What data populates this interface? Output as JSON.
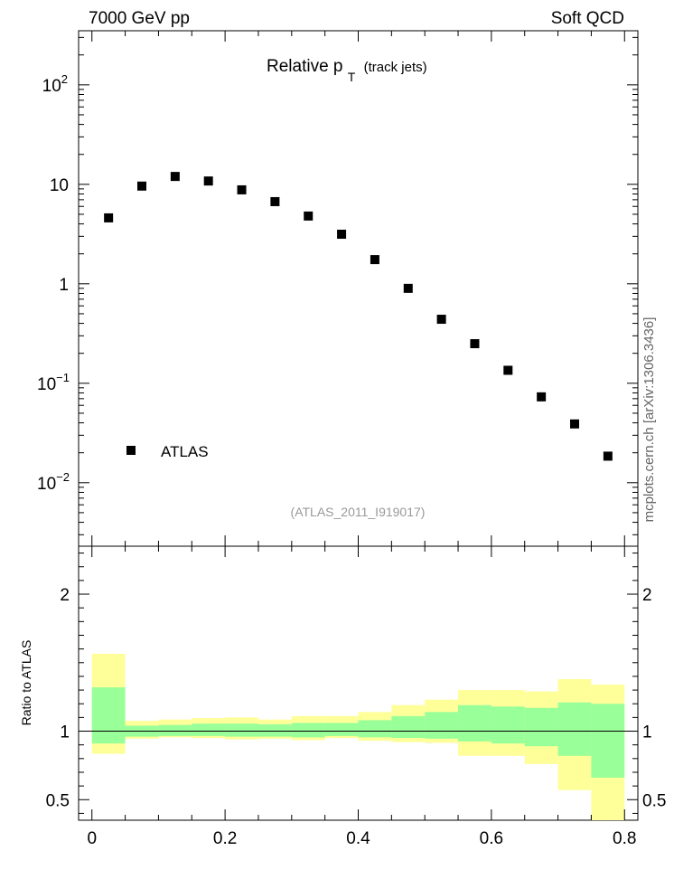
{
  "header": {
    "left": "7000 GeV pp",
    "right": "Soft QCD"
  },
  "title": {
    "main": "Relative p",
    "sub": "T",
    "suffix": "(track jets)"
  },
  "side_label": "mcplots.cern.ch [arXiv:1306.3436]",
  "analysis_id": "(ATLAS_2011_I919017)",
  "legend": {
    "label": "ATLAS",
    "placement": "bottom-left",
    "marker": "square"
  },
  "colors": {
    "band_inner": "#99ff99",
    "band_outer": "#ffff99",
    "marker": "#000000",
    "analysis_text": "#999999",
    "side_text": "#666666"
  },
  "chart_data": [
    {
      "type": "scatter",
      "panel": "main",
      "yscale": "log",
      "xlim": [
        -0.02,
        0.82
      ],
      "ylim": [
        0.0023,
        350
      ],
      "y_ticks": [
        {
          "value": 0.01,
          "base": "10",
          "exp": "−2"
        },
        {
          "value": 0.1,
          "base": "10",
          "exp": "−1"
        },
        {
          "value": 1,
          "base": "1",
          "exp": ""
        },
        {
          "value": 10,
          "base": "10",
          "exp": ""
        },
        {
          "value": 100,
          "base": "10",
          "exp": "2"
        }
      ],
      "series": [
        {
          "name": "ATLAS",
          "x": [
            0.025,
            0.075,
            0.125,
            0.175,
            0.225,
            0.275,
            0.325,
            0.375,
            0.425,
            0.475,
            0.525,
            0.575,
            0.625,
            0.675,
            0.725,
            0.775
          ],
          "y": [
            4.6,
            9.6,
            12.0,
            10.8,
            8.8,
            6.7,
            4.8,
            3.15,
            1.75,
            0.9,
            0.44,
            0.25,
            0.135,
            0.073,
            0.039,
            0.0185
          ]
        }
      ]
    },
    {
      "type": "area",
      "panel": "ratio",
      "ylabel": "Ratio to ATLAS",
      "xlim": [
        -0.02,
        0.82
      ],
      "ylim": [
        0.35,
        2.35
      ],
      "x_ticks": [
        "0",
        "0.2",
        "0.4",
        "0.6",
        "0.8"
      ],
      "x_tick_values": [
        0,
        0.2,
        0.4,
        0.6,
        0.8
      ],
      "y_ticks": [
        "0.5",
        "1",
        "2"
      ],
      "y_tick_values": [
        0.5,
        1,
        2
      ],
      "bins": [
        {
          "lo": 0.0,
          "hi": 0.05,
          "outer": [
            0.835,
            1.565
          ],
          "inner": [
            0.91,
            1.32
          ]
        },
        {
          "lo": 0.05,
          "hi": 0.1,
          "outer": [
            0.945,
            1.075
          ],
          "inner": [
            0.96,
            1.04
          ]
        },
        {
          "lo": 0.1,
          "hi": 0.15,
          "outer": [
            0.955,
            1.085
          ],
          "inner": [
            0.965,
            1.045
          ]
        },
        {
          "lo": 0.15,
          "hi": 0.2,
          "outer": [
            0.95,
            1.095
          ],
          "inner": [
            0.965,
            1.055
          ]
        },
        {
          "lo": 0.2,
          "hi": 0.25,
          "outer": [
            0.94,
            1.1
          ],
          "inner": [
            0.96,
            1.055
          ]
        },
        {
          "lo": 0.25,
          "hi": 0.3,
          "outer": [
            0.945,
            1.085
          ],
          "inner": [
            0.96,
            1.05
          ]
        },
        {
          "lo": 0.3,
          "hi": 0.35,
          "outer": [
            0.935,
            1.11
          ],
          "inner": [
            0.955,
            1.06
          ]
        },
        {
          "lo": 0.35,
          "hi": 0.4,
          "outer": [
            0.95,
            1.11
          ],
          "inner": [
            0.965,
            1.06
          ]
        },
        {
          "lo": 0.4,
          "hi": 0.45,
          "outer": [
            0.93,
            1.14
          ],
          "inner": [
            0.955,
            1.08
          ]
        },
        {
          "lo": 0.45,
          "hi": 0.5,
          "outer": [
            0.92,
            1.19
          ],
          "inner": [
            0.95,
            1.11
          ]
        },
        {
          "lo": 0.5,
          "hi": 0.55,
          "outer": [
            0.915,
            1.23
          ],
          "inner": [
            0.945,
            1.14
          ]
        },
        {
          "lo": 0.55,
          "hi": 0.6,
          "outer": [
            0.82,
            1.3
          ],
          "inner": [
            0.925,
            1.19
          ]
        },
        {
          "lo": 0.6,
          "hi": 0.65,
          "outer": [
            0.82,
            1.3
          ],
          "inner": [
            0.91,
            1.18
          ]
        },
        {
          "lo": 0.65,
          "hi": 0.7,
          "outer": [
            0.76,
            1.29
          ],
          "inner": [
            0.89,
            1.17
          ]
        },
        {
          "lo": 0.7,
          "hi": 0.75,
          "outer": [
            0.57,
            1.38
          ],
          "inner": [
            0.82,
            1.21
          ]
        },
        {
          "lo": 0.75,
          "hi": 0.8,
          "outer": [
            0.35,
            1.34
          ],
          "inner": [
            0.66,
            1.2
          ]
        }
      ]
    }
  ]
}
